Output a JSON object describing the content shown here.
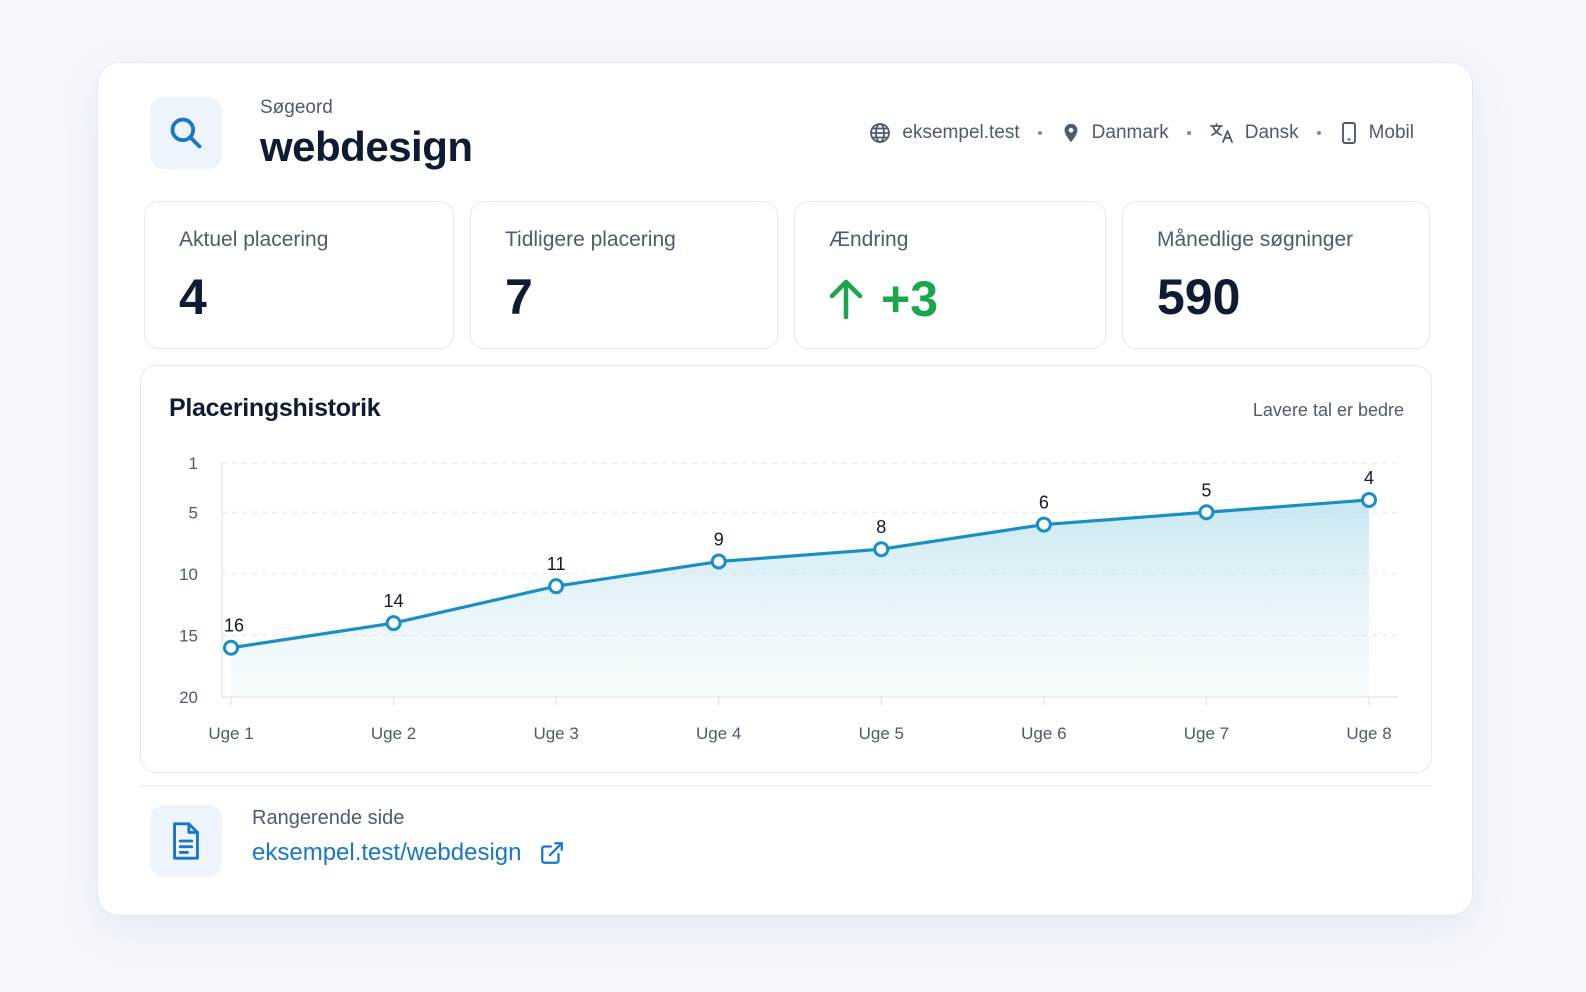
{
  "keyword": {
    "label": "Søgeord",
    "value": "webdesign",
    "icon": "search-icon"
  },
  "meta": [
    {
      "icon": "globe-icon",
      "text": "eksempel.test"
    },
    {
      "icon": "location-pin-icon",
      "text": "Danmark"
    },
    {
      "icon": "translate-icon",
      "text": "Dansk"
    },
    {
      "icon": "mobile-icon",
      "text": "Mobil"
    }
  ],
  "stats": {
    "current": {
      "label": "Aktuel placering",
      "value": "4"
    },
    "previous": {
      "label": "Tidligere placering",
      "value": "7"
    },
    "change": {
      "label": "Ændring",
      "value": "+3",
      "icon": "arrow-up-icon"
    },
    "monthly": {
      "label": "Månedlige søgninger",
      "value": "590"
    }
  },
  "chart": {
    "title": "Placeringshistorik",
    "note": "Lavere tal er bedre"
  },
  "chart_data": {
    "type": "area",
    "title": "Placeringshistorik",
    "annotation": "Lavere tal er bedre",
    "categories": [
      "Uge 1",
      "Uge 2",
      "Uge 3",
      "Uge 4",
      "Uge 5",
      "Uge 6",
      "Uge 7",
      "Uge 8"
    ],
    "values": [
      16,
      14,
      11,
      9,
      8,
      6,
      5,
      4
    ],
    "y_ticks": [
      1,
      5,
      10,
      15,
      20
    ],
    "ylim": [
      1,
      20
    ],
    "y_inverted": true,
    "grid": true,
    "data_labels": true
  },
  "ranking_page": {
    "label": "Rangerende side",
    "url": "eksempel.test/webdesign",
    "icon": "document-icon",
    "link_icon": "external-link-icon"
  },
  "colors": {
    "accent": "#1877c9",
    "line": "#1a8fc4",
    "positive": "#1aa64b",
    "text": "#0f1b33",
    "muted": "#4d5b72"
  }
}
